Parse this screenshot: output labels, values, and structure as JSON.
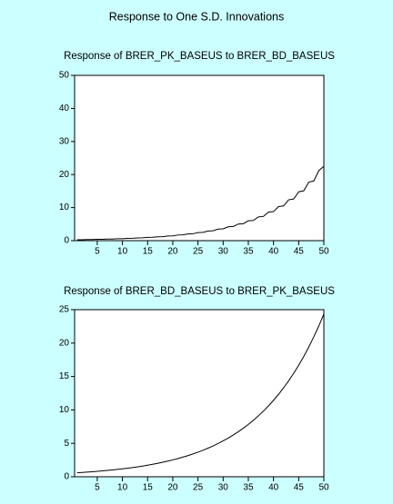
{
  "title": "Response to One S.D. Innovations",
  "chart_data": [
    {
      "type": "line",
      "title": "Response of BRER_PK_BASEUS to BRER_BD_BASEUS",
      "x": [
        1,
        2,
        3,
        4,
        5,
        6,
        7,
        8,
        9,
        10,
        11,
        12,
        13,
        14,
        15,
        16,
        17,
        18,
        19,
        20,
        21,
        22,
        23,
        24,
        25,
        26,
        27,
        28,
        29,
        30,
        31,
        32,
        33,
        34,
        35,
        36,
        37,
        38,
        39,
        40,
        41,
        42,
        43,
        44,
        45,
        46,
        47,
        48,
        49,
        50
      ],
      "series": [
        {
          "name": "BRER_PK_BASEUS",
          "color": "#000000",
          "values": [
            0.28,
            0.29,
            0.34,
            0.35,
            0.4,
            0.41,
            0.48,
            0.49,
            0.58,
            0.59,
            0.69,
            0.71,
            0.83,
            0.85,
            0.99,
            1.02,
            1.18,
            1.21,
            1.42,
            1.45,
            1.7,
            1.74,
            2.04,
            2.08,
            2.44,
            2.5,
            2.92,
            2.99,
            3.5,
            3.57,
            4.19,
            4.27,
            5.02,
            5.12,
            6.0,
            6.12,
            7.19,
            7.33,
            8.61,
            8.78,
            10.31,
            10.51,
            12.35,
            12.59,
            14.78,
            15.07,
            17.7,
            18.05,
            21.19,
            22.5
          ]
        }
      ],
      "xlim": [
        0.5,
        50
      ],
      "xticks": [
        5,
        10,
        15,
        20,
        25,
        30,
        35,
        40,
        45,
        50
      ],
      "ylim": [
        0,
        50
      ],
      "yticks": [
        0,
        10,
        20,
        30,
        40,
        50
      ]
    },
    {
      "type": "line",
      "title": "Response of BRER_BD_BASEUS to BRER_PK_BASEUS",
      "x": [
        1,
        2,
        3,
        4,
        5,
        6,
        7,
        8,
        9,
        10,
        11,
        12,
        13,
        14,
        15,
        16,
        17,
        18,
        19,
        20,
        21,
        22,
        23,
        24,
        25,
        26,
        27,
        28,
        29,
        30,
        31,
        32,
        33,
        34,
        35,
        36,
        37,
        38,
        39,
        40,
        41,
        42,
        43,
        44,
        45,
        46,
        47,
        48,
        49,
        50
      ],
      "series": [
        {
          "name": "BRER_BD_BASEUS",
          "color": "#000000",
          "values": [
            0.6,
            0.647,
            0.698,
            0.752,
            0.811,
            0.875,
            0.944,
            1.018,
            1.098,
            1.184,
            1.277,
            1.377,
            1.485,
            1.602,
            1.728,
            1.863,
            2.01,
            2.168,
            2.338,
            2.521,
            2.719,
            2.933,
            3.163,
            3.411,
            3.679,
            3.968,
            4.28,
            4.616,
            4.978,
            5.369,
            5.79,
            6.245,
            6.735,
            7.264,
            7.834,
            8.449,
            9.113,
            9.828,
            10.6,
            11.43,
            12.33,
            13.3,
            14.34,
            15.47,
            16.68,
            17.99,
            19.4,
            20.93,
            22.57,
            24.34
          ]
        }
      ],
      "xlim": [
        0.5,
        50
      ],
      "xticks": [
        5,
        10,
        15,
        20,
        25,
        30,
        35,
        40,
        45,
        50
      ],
      "ylim": [
        0,
        25
      ],
      "yticks": [
        0,
        5,
        10,
        15,
        20,
        25
      ]
    }
  ]
}
